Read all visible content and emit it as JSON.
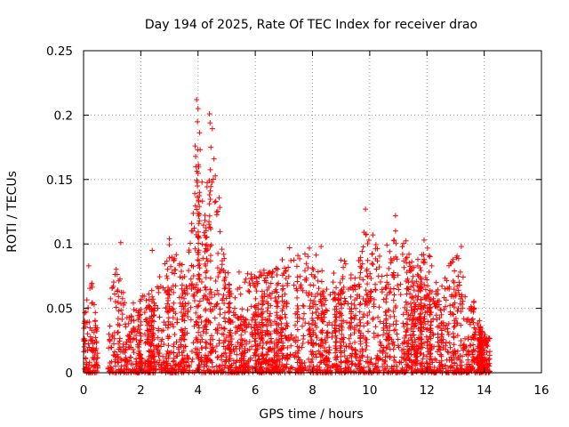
{
  "chart_data": {
    "type": "scatter",
    "title": "Day 194 of 2025, Rate Of TEC Index for receiver drao",
    "xlabel": "GPS time / hours",
    "ylabel": "ROTI / TECUs",
    "xlim": [
      0,
      16
    ],
    "ylim": [
      0,
      0.25
    ],
    "xticks": [
      0,
      2,
      4,
      6,
      8,
      10,
      12,
      14,
      16
    ],
    "yticks": [
      0,
      0.05,
      0.1,
      0.15,
      0.2,
      0.25
    ],
    "xtick_labels": [
      "0",
      "2",
      "4",
      "6",
      "8",
      "10",
      "12",
      "14",
      "16"
    ],
    "ytick_labels": [
      "0",
      "0.05",
      "0.1",
      "0.15",
      "0.2",
      "0.25"
    ],
    "grid": true,
    "marker": "+",
    "color": "#ff0000",
    "x_data_range": [
      0,
      14.2
    ],
    "data_gap_hours": [
      0.5,
      0.85
    ],
    "envelope": {
      "x": [
        0.0,
        0.15,
        0.3,
        0.5,
        0.85,
        1.2,
        1.5,
        2.0,
        2.5,
        3.0,
        3.5,
        3.8,
        4.0,
        4.2,
        4.5,
        5.0,
        6.0,
        7.0,
        8.0,
        8.5,
        9.0,
        9.5,
        10.0,
        10.5,
        11.0,
        11.5,
        12.0,
        12.5,
        13.0,
        13.5,
        14.0,
        14.2
      ],
      "y": [
        0.04,
        0.08,
        0.07,
        0.03,
        0.05,
        0.09,
        0.05,
        0.06,
        0.065,
        0.1,
        0.09,
        0.12,
        0.21,
        0.14,
        0.19,
        0.08,
        0.08,
        0.09,
        0.1,
        0.07,
        0.09,
        0.08,
        0.12,
        0.08,
        0.12,
        0.09,
        0.1,
        0.07,
        0.095,
        0.065,
        0.03,
        0.03
      ]
    },
    "highlight_points": [
      {
        "x": 3.0,
        "y": 0.104
      },
      {
        "x": 3.95,
        "y": 0.212
      },
      {
        "x": 4.0,
        "y": 0.205
      },
      {
        "x": 3.9,
        "y": 0.176
      },
      {
        "x": 3.92,
        "y": 0.16
      },
      {
        "x": 4.4,
        "y": 0.201
      },
      {
        "x": 4.42,
        "y": 0.194
      },
      {
        "x": 4.45,
        "y": 0.175
      },
      {
        "x": 3.98,
        "y": 0.145
      },
      {
        "x": 4.05,
        "y": 0.14
      },
      {
        "x": 4.62,
        "y": 0.133
      },
      {
        "x": 9.85,
        "y": 0.127
      },
      {
        "x": 10.9,
        "y": 0.122
      },
      {
        "x": 1.3,
        "y": 0.101
      },
      {
        "x": 9.8,
        "y": 0.109
      },
      {
        "x": 10.6,
        "y": 0.099
      },
      {
        "x": 7.2,
        "y": 0.097
      },
      {
        "x": 8.3,
        "y": 0.098
      },
      {
        "x": 11.9,
        "y": 0.103
      },
      {
        "x": 13.2,
        "y": 0.098
      },
      {
        "x": 0.18,
        "y": 0.083
      },
      {
        "x": 2.4,
        "y": 0.095
      }
    ]
  }
}
